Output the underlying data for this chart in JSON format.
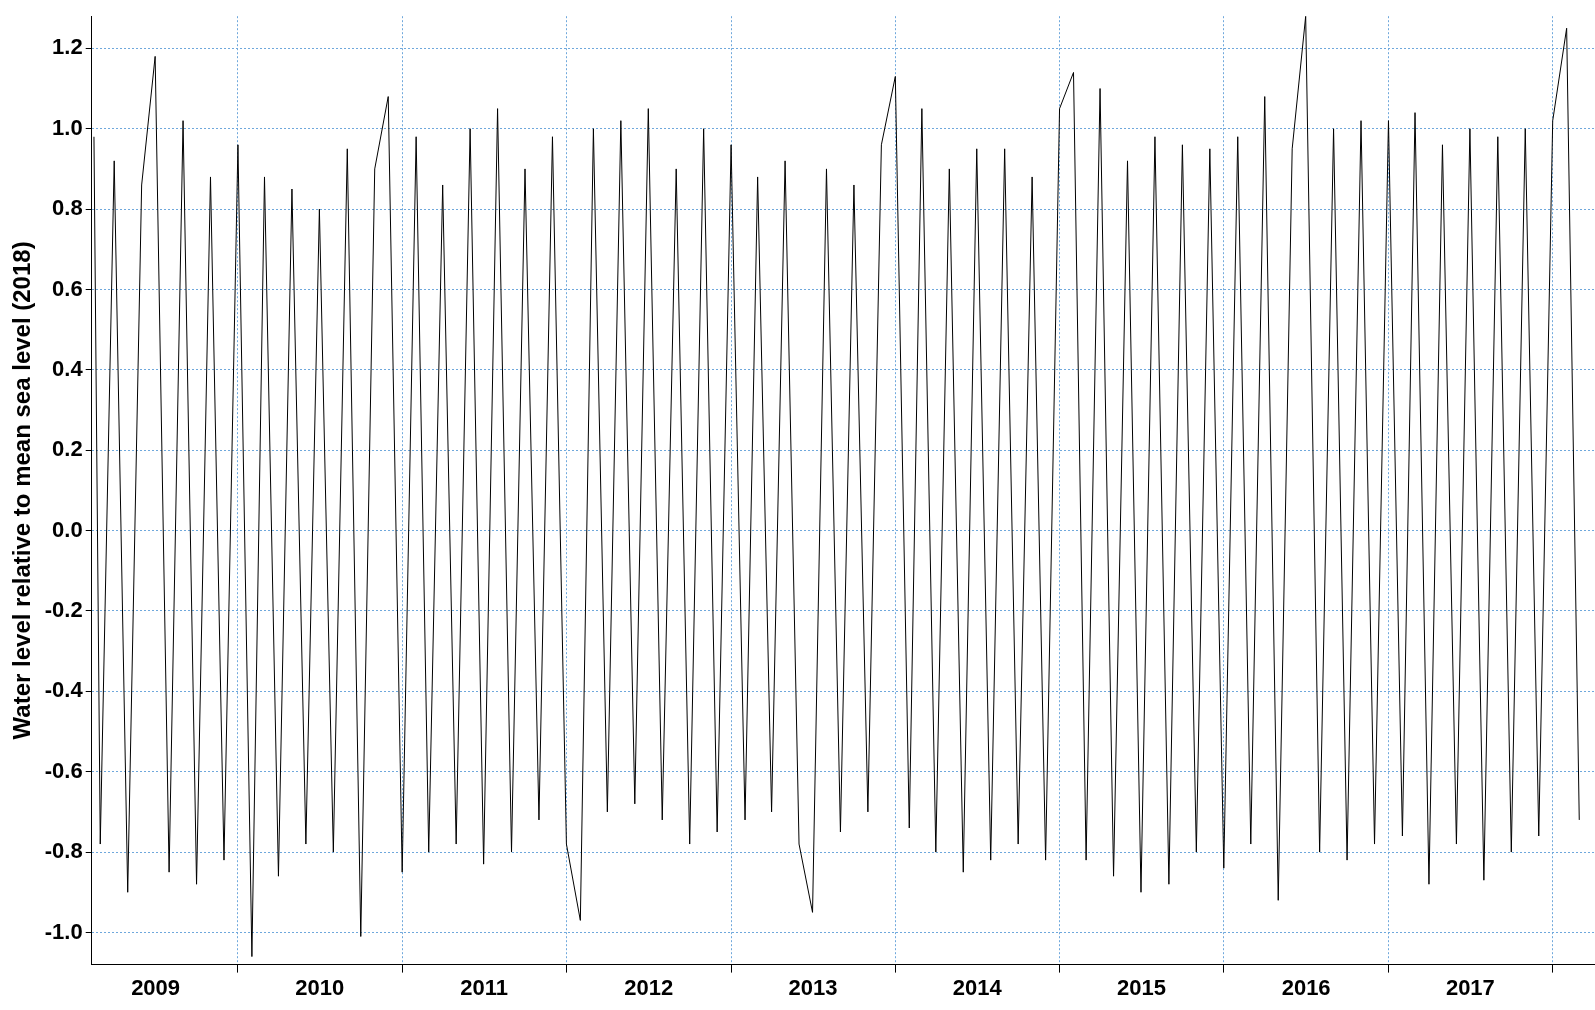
{
  "chart_data": {
    "type": "line",
    "ylabel": "Water level relative to mean sea level (2018)",
    "xlim": [
      "2009-02-10",
      "2018-04-05"
    ],
    "xticks": [
      {
        "value": "2009-07-02",
        "label": "2009"
      },
      {
        "value": "2010-01-01",
        "label": null
      },
      {
        "value": "2010-07-02",
        "label": "2010"
      },
      {
        "value": "2011-01-01",
        "label": null
      },
      {
        "value": "2011-07-02",
        "label": "2011"
      },
      {
        "value": "2012-01-01",
        "label": null
      },
      {
        "value": "2012-07-02",
        "label": "2012"
      },
      {
        "value": "2013-01-01",
        "label": null
      },
      {
        "value": "2013-07-02",
        "label": "2013"
      },
      {
        "value": "2014-01-01",
        "label": null
      },
      {
        "value": "2014-07-02",
        "label": "2014"
      },
      {
        "value": "2015-01-01",
        "label": null
      },
      {
        "value": "2015-07-02",
        "label": "2015"
      },
      {
        "value": "2016-01-01",
        "label": null
      },
      {
        "value": "2016-07-02",
        "label": "2016"
      },
      {
        "value": "2017-01-01",
        "label": null
      },
      {
        "value": "2017-07-02",
        "label": "2017"
      },
      {
        "value": "2018-01-01",
        "label": null
      }
    ],
    "ylim": [
      -1.08,
      1.28
    ],
    "yticks": [
      {
        "value": -1,
        "label": "-1.0"
      },
      -0.8,
      -0.6,
      -0.4,
      -0.2,
      {
        "value": 0,
        "label": "0.0"
      },
      0.2,
      0.4,
      0.6,
      0.8,
      {
        "value": 1,
        "label": "1.0"
      },
      1.2
    ],
    "grid": true,
    "marker": "none",
    "line_style": "solid",
    "series": [
      {
        "color": "#000000",
        "x": [
          "2009-02-15",
          "2009-03",
          "2009-04",
          "2009-05",
          "2009-06",
          "2009-07",
          "2009-08",
          "2009-09",
          "2009-10",
          "2009-11",
          "2009-12",
          "2010-01",
          "2010-02",
          "2010-03",
          "2010-04",
          "2010-05",
          "2010-06",
          "2010-07",
          "2010-08",
          "2010-09",
          "2010-10",
          "2010-11",
          "2010-12",
          "2011-01",
          "2011-02",
          "2011-03",
          "2011-04",
          "2011-05",
          "2011-06",
          "2011-07",
          "2011-08",
          "2011-09",
          "2011-10",
          "2011-11",
          "2011-12",
          "2012-01",
          "2012-02",
          "2012-03",
          "2012-04",
          "2012-05",
          "2012-06",
          "2012-07",
          "2012-08",
          "2012-09",
          "2012-10",
          "2012-11",
          "2012-12",
          "2013-01",
          "2013-02",
          "2013-03",
          "2013-04",
          "2013-05",
          "2013-06",
          "2013-07",
          "2013-08",
          "2013-09",
          "2013-10",
          "2013-11",
          "2013-12",
          "2014-01",
          "2014-02",
          "2014-03",
          "2014-04",
          "2014-05",
          "2014-06",
          "2014-07",
          "2014-08",
          "2014-09",
          "2014-10",
          "2014-11",
          "2014-12",
          "2015-01",
          "2015-02",
          "2015-03",
          "2015-04",
          "2015-05",
          "2015-06",
          "2015-07",
          "2015-08",
          "2015-09",
          "2015-10",
          "2015-11",
          "2015-12",
          "2016-01",
          "2016-02",
          "2016-03",
          "2016-04",
          "2016-05",
          "2016-06",
          "2016-07",
          "2016-08",
          "2016-09",
          "2016-10",
          "2016-11",
          "2016-12",
          "2017-01",
          "2017-02",
          "2017-03",
          "2017-04",
          "2017-05",
          "2017-06",
          "2017-07",
          "2017-08",
          "2017-09",
          "2017-10",
          "2017-11",
          "2017-12",
          "2018-01",
          "2018-02",
          "2018-03"
        ],
        "values": [
          0.98,
          -0.78,
          0.92,
          -0.9,
          0.86,
          1.18,
          -0.85,
          1.02,
          -0.88,
          0.88,
          -0.82,
          0.96,
          -1.06,
          0.88,
          -0.86,
          0.85,
          -0.78,
          0.8,
          -0.8,
          0.95,
          -1.01,
          0.9,
          1.08,
          -0.85,
          0.98,
          -0.8,
          0.86,
          -0.78,
          1.0,
          -0.83,
          1.05,
          -0.8,
          0.9,
          -0.72,
          0.98,
          -0.78,
          -0.97,
          1.0,
          -0.7,
          1.02,
          -0.68,
          1.05,
          -0.72,
          0.9,
          -0.78,
          1.0,
          -0.75,
          0.96,
          -0.72,
          0.88,
          -0.7,
          0.92,
          -0.78,
          -0.95,
          0.9,
          -0.75,
          0.86,
          -0.7,
          0.96,
          1.13,
          -0.74,
          1.05,
          -0.8,
          0.9,
          -0.85,
          0.95,
          -0.82,
          0.95,
          -0.78,
          0.88,
          -0.82,
          1.05,
          1.14,
          -0.82,
          1.1,
          -0.86,
          0.92,
          -0.9,
          0.98,
          -0.88,
          0.96,
          -0.8,
          0.95,
          -0.84,
          0.98,
          -0.78,
          1.08,
          -0.92,
          0.95,
          1.28,
          -0.8,
          1.0,
          -0.82,
          1.02,
          -0.78,
          1.02,
          -0.76,
          1.04,
          -0.88,
          0.96,
          -0.78,
          1.0,
          -0.87,
          0.98,
          -0.8,
          1.0,
          -0.76,
          1.02,
          1.25,
          -0.72
        ]
      }
    ]
  }
}
